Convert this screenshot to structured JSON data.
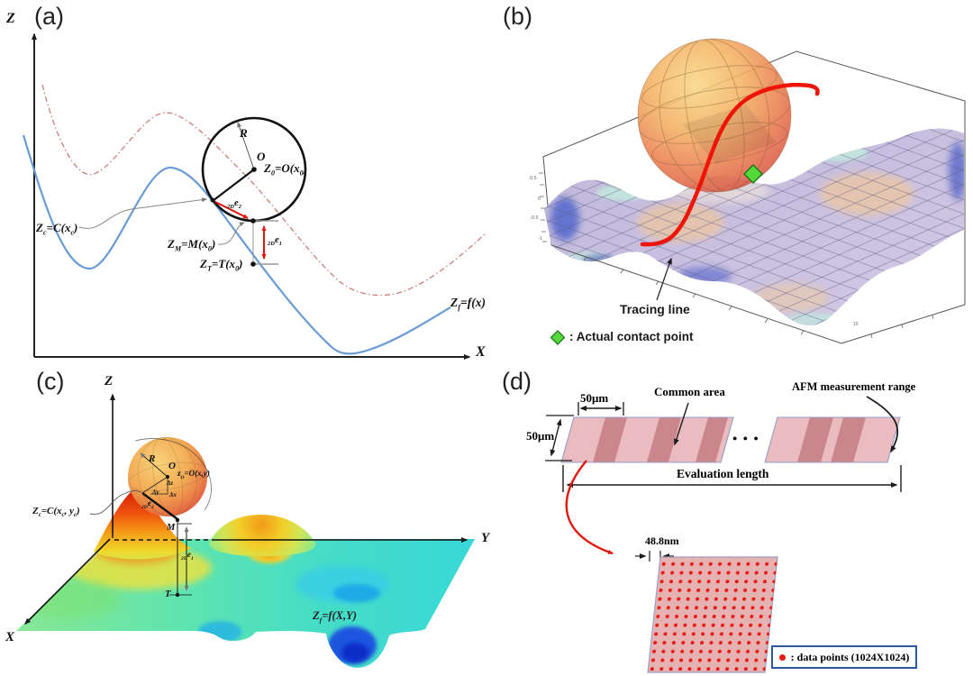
{
  "figure": {
    "description": "Four-panel figure: stylus tip tracing of surface profiles (2D and 3D) and AFM measurement sampling scheme",
    "panels": [
      "(a)",
      "(b)",
      "(c)",
      "(d)"
    ]
  },
  "colors": {
    "profile_blue": "#6b9bd4",
    "traced_red_dashed": "#c97c7c",
    "arrow_red": "#e01810",
    "tracing_red": "#ee1508",
    "contact_green": "#55d83a",
    "contact_green_border": "#1f7a1f",
    "sphere_orange": "#f3b063",
    "surface_lavender": "#c3bade",
    "strip_pink": "#eabcbf",
    "strip_dark_pink": "#cb858c",
    "data_dot_red": "#e81815",
    "legend_border_blue": "#30589c"
  },
  "panel_a": {
    "tag": "(a)",
    "axis_vertical": "Z",
    "axis_horizontal": "X",
    "radius": "R",
    "center": "O",
    "rich": {
      "z0": [
        {
          "t": "Z"
        },
        {
          "t": "0",
          "sub": true
        },
        {
          "t": "=O(x"
        },
        {
          "t": "0",
          "sub": true
        },
        {
          "t": ")"
        }
      ],
      "zc": [
        {
          "t": "Z"
        },
        {
          "t": "c",
          "sub": true
        },
        {
          "t": "=C(x"
        },
        {
          "t": "c",
          "sub": true
        },
        {
          "t": ")"
        }
      ],
      "zm": [
        {
          "t": "Z"
        },
        {
          "t": "M",
          "sub": true
        },
        {
          "t": "=M(x"
        },
        {
          "t": "0",
          "sub": true
        },
        {
          "t": ")"
        }
      ],
      "zt": [
        {
          "t": "Z"
        },
        {
          "t": "T",
          "sub": true
        },
        {
          "t": "=T(x"
        },
        {
          "t": "0",
          "sub": true
        },
        {
          "t": ")"
        }
      ],
      "zf": [
        {
          "t": "Z"
        },
        {
          "t": "f",
          "sub": true
        },
        {
          "t": "=f(x)"
        }
      ],
      "e2": [
        {
          "t": "2D",
          "sub": true
        },
        {
          "t": "e"
        },
        {
          "t": "2",
          "sub": true
        }
      ],
      "e1": [
        {
          "t": "2D",
          "sub": true
        },
        {
          "t": "e"
        },
        {
          "t": "1",
          "sub": true
        }
      ]
    }
  },
  "panel_b": {
    "tag": "(b)",
    "tracing_line": "Tracing line",
    "legend": ": Actual contact point",
    "ticks": {
      "t1": "0.5",
      "t2": "0",
      "t3": "-0.5",
      "t4": "-1",
      "t5": "10"
    }
  },
  "panel_c": {
    "tag": "(c)",
    "axis_z": "Z",
    "axis_y": "Y",
    "axis_x": "X",
    "radius": "R",
    "center": "O",
    "delta_z": "Δz",
    "delta_y": "Δy",
    "delta_x": "Δx",
    "point_m": "M",
    "point_t": "T",
    "rich": {
      "zo": [
        {
          "t": "z"
        },
        {
          "t": "O",
          "sub": true
        },
        {
          "t": "=O(x,y)"
        }
      ],
      "zc": [
        {
          "t": "Z"
        },
        {
          "t": "c",
          "sub": true
        },
        {
          "t": "=C(x"
        },
        {
          "t": "c",
          "sub": true
        },
        {
          "t": ", y"
        },
        {
          "t": "c",
          "sub": true
        },
        {
          "t": ")"
        }
      ],
      "zf": [
        {
          "t": "Z"
        },
        {
          "t": "f",
          "sub": true
        },
        {
          "t": "=f(X,Y)"
        }
      ],
      "e2": [
        {
          "t": "2D",
          "sub": true
        },
        {
          "t": "e"
        },
        {
          "t": "2",
          "sub": true
        }
      ],
      "e1": [
        {
          "t": "2D",
          "sub": true
        },
        {
          "t": "e"
        },
        {
          "t": "1",
          "sub": true
        }
      ]
    }
  },
  "panel_d": {
    "tag": "(d)",
    "width_label": "50μm",
    "height_label": "50μm",
    "common_area": "Common area",
    "afm_range": "AFM measurement range",
    "evaluation_length": "Evaluation length",
    "spacing": "48.8nm",
    "ellipsis": "● ● ●",
    "legend_text": ": data points (1024X1024)"
  }
}
